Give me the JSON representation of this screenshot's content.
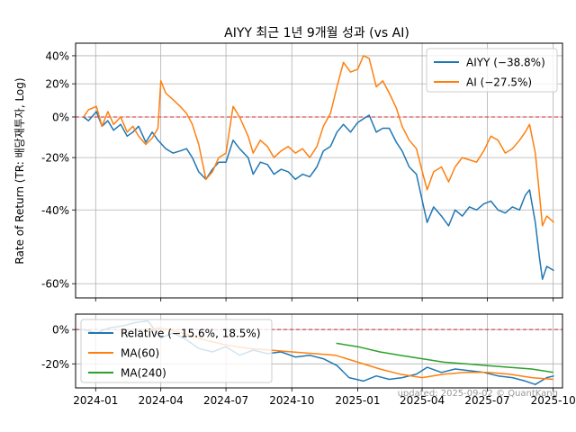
{
  "chart_data": [
    {
      "type": "line",
      "title": "AIYY 최근 1년 9개월 성과 (vs AI)",
      "ylabel": "Rate of Return (TR: 배당재투자, Log)",
      "yscale": "log",
      "ylim": [
        -0.63,
        0.5
      ],
      "xlim": [
        "2023-12-04",
        "2025-10-14"
      ],
      "grid": true,
      "legend_position": "top-right",
      "x_ticks": [
        {
          "date": "2024-01-01",
          "label": "2024-01"
        },
        {
          "date": "2024-04-01",
          "label": "2024-04"
        },
        {
          "date": "2024-07-01",
          "label": "2024-07"
        },
        {
          "date": "2024-10-01",
          "label": "2024-10"
        },
        {
          "date": "2025-01-01",
          "label": "2025-01"
        },
        {
          "date": "2025-04-01",
          "label": "2025-04"
        },
        {
          "date": "2025-07-01",
          "label": "2025-07"
        },
        {
          "date": "2025-10-01",
          "label": "2025-10"
        }
      ],
      "y_ticks": [
        {
          "value": 0.4,
          "label": "40%"
        },
        {
          "value": 0.2,
          "label": "20%"
        },
        {
          "value": 0.0,
          "label": "0%"
        },
        {
          "value": -0.2,
          "label": "-20%"
        },
        {
          "value": -0.4,
          "label": "-40%"
        },
        {
          "value": -0.6,
          "label": "-60%"
        }
      ],
      "reference_line": {
        "value": 0,
        "color": "#d62728",
        "style": "dashed"
      },
      "series": [
        {
          "name": "AIYY (−38.8%)",
          "color": "#1f77b4",
          "points": [
            [
              "2023-12-15",
              0.0
            ],
            [
              "2023-12-22",
              -0.02
            ],
            [
              "2024-01-02",
              0.03
            ],
            [
              "2024-01-10",
              -0.05
            ],
            [
              "2024-01-18",
              -0.02
            ],
            [
              "2024-01-26",
              -0.07
            ],
            [
              "2024-02-05",
              -0.04
            ],
            [
              "2024-02-14",
              -0.1
            ],
            [
              "2024-02-22",
              -0.08
            ],
            [
              "2024-03-01",
              -0.05
            ],
            [
              "2024-03-11",
              -0.13
            ],
            [
              "2024-03-20",
              -0.08
            ],
            [
              "2024-03-28",
              -0.12
            ],
            [
              "2024-04-08",
              -0.16
            ],
            [
              "2024-04-18",
              -0.18
            ],
            [
              "2024-04-28",
              -0.17
            ],
            [
              "2024-05-07",
              -0.16
            ],
            [
              "2024-05-15",
              -0.2
            ],
            [
              "2024-05-24",
              -0.26
            ],
            [
              "2024-06-03",
              -0.29
            ],
            [
              "2024-06-12",
              -0.25
            ],
            [
              "2024-06-21",
              -0.22
            ],
            [
              "2024-07-01",
              -0.22
            ],
            [
              "2024-07-11",
              -0.12
            ],
            [
              "2024-07-20",
              -0.16
            ],
            [
              "2024-08-01",
              -0.2
            ],
            [
              "2024-08-08",
              -0.27
            ],
            [
              "2024-08-18",
              -0.22
            ],
            [
              "2024-08-28",
              -0.23
            ],
            [
              "2024-09-06",
              -0.27
            ],
            [
              "2024-09-16",
              -0.25
            ],
            [
              "2024-09-26",
              -0.26
            ],
            [
              "2024-10-06",
              -0.29
            ],
            [
              "2024-10-16",
              -0.27
            ],
            [
              "2024-10-26",
              -0.28
            ],
            [
              "2024-11-05",
              -0.24
            ],
            [
              "2024-11-14",
              -0.17
            ],
            [
              "2024-11-24",
              -0.15
            ],
            [
              "2024-12-03",
              -0.08
            ],
            [
              "2024-12-12",
              -0.04
            ],
            [
              "2024-12-22",
              -0.08
            ],
            [
              "2025-01-01",
              -0.03
            ],
            [
              "2025-01-09",
              -0.01
            ],
            [
              "2025-01-17",
              0.01
            ],
            [
              "2025-01-27",
              -0.08
            ],
            [
              "2025-02-05",
              -0.06
            ],
            [
              "2025-02-14",
              -0.06
            ],
            [
              "2025-02-24",
              -0.13
            ],
            [
              "2025-03-04",
              -0.17
            ],
            [
              "2025-03-14",
              -0.24
            ],
            [
              "2025-03-24",
              -0.27
            ],
            [
              "2025-04-03",
              -0.39
            ],
            [
              "2025-04-08",
              -0.44
            ],
            [
              "2025-04-17",
              -0.39
            ],
            [
              "2025-04-28",
              -0.42
            ],
            [
              "2025-05-08",
              -0.45
            ],
            [
              "2025-05-17",
              -0.4
            ],
            [
              "2025-05-27",
              -0.42
            ],
            [
              "2025-06-06",
              -0.39
            ],
            [
              "2025-06-16",
              -0.4
            ],
            [
              "2025-06-26",
              -0.38
            ],
            [
              "2025-07-06",
              -0.37
            ],
            [
              "2025-07-16",
              -0.4
            ],
            [
              "2025-07-26",
              -0.41
            ],
            [
              "2025-08-05",
              -0.39
            ],
            [
              "2025-08-15",
              -0.4
            ],
            [
              "2025-08-23",
              -0.35
            ],
            [
              "2025-08-29",
              -0.33
            ],
            [
              "2025-09-06",
              -0.44
            ],
            [
              "2025-09-12",
              -0.54
            ],
            [
              "2025-09-16",
              -0.59
            ],
            [
              "2025-09-22",
              -0.56
            ],
            [
              "2025-10-02",
              -0.57
            ]
          ]
        },
        {
          "name": "AI (−27.5%)",
          "color": "#ff7f0e",
          "points": [
            [
              "2023-12-15",
              0.0
            ],
            [
              "2023-12-22",
              0.04
            ],
            [
              "2024-01-02",
              0.06
            ],
            [
              "2024-01-10",
              -0.05
            ],
            [
              "2024-01-18",
              0.03
            ],
            [
              "2024-01-26",
              -0.04
            ],
            [
              "2024-02-05",
              0.0
            ],
            [
              "2024-02-14",
              -0.08
            ],
            [
              "2024-02-22",
              -0.05
            ],
            [
              "2024-03-01",
              -0.1
            ],
            [
              "2024-03-11",
              -0.14
            ],
            [
              "2024-03-20",
              -0.11
            ],
            [
              "2024-03-28",
              -0.06
            ],
            [
              "2024-04-01",
              0.22
            ],
            [
              "2024-04-08",
              0.14
            ],
            [
              "2024-04-18",
              0.1
            ],
            [
              "2024-04-28",
              0.06
            ],
            [
              "2024-05-07",
              0.02
            ],
            [
              "2024-05-15",
              -0.04
            ],
            [
              "2024-05-24",
              -0.14
            ],
            [
              "2024-06-03",
              -0.29
            ],
            [
              "2024-06-12",
              -0.26
            ],
            [
              "2024-06-21",
              -0.2
            ],
            [
              "2024-07-01",
              -0.18
            ],
            [
              "2024-07-11",
              0.06
            ],
            [
              "2024-07-20",
              0.0
            ],
            [
              "2024-08-01",
              -0.1
            ],
            [
              "2024-08-08",
              -0.18
            ],
            [
              "2024-08-18",
              -0.12
            ],
            [
              "2024-08-28",
              -0.15
            ],
            [
              "2024-09-06",
              -0.2
            ],
            [
              "2024-09-16",
              -0.17
            ],
            [
              "2024-09-26",
              -0.15
            ],
            [
              "2024-10-06",
              -0.18
            ],
            [
              "2024-10-16",
              -0.16
            ],
            [
              "2024-10-26",
              -0.2
            ],
            [
              "2024-11-05",
              -0.15
            ],
            [
              "2024-11-14",
              -0.05
            ],
            [
              "2024-11-24",
              0.02
            ],
            [
              "2024-12-03",
              0.18
            ],
            [
              "2024-12-12",
              0.35
            ],
            [
              "2024-12-22",
              0.28
            ],
            [
              "2025-01-01",
              0.3
            ],
            [
              "2025-01-09",
              0.4
            ],
            [
              "2025-01-17",
              0.38
            ],
            [
              "2025-01-27",
              0.18
            ],
            [
              "2025-02-05",
              0.22
            ],
            [
              "2025-02-14",
              0.14
            ],
            [
              "2025-02-24",
              0.05
            ],
            [
              "2025-03-04",
              -0.05
            ],
            [
              "2025-03-14",
              -0.12
            ],
            [
              "2025-03-24",
              -0.16
            ],
            [
              "2025-04-03",
              -0.28
            ],
            [
              "2025-04-08",
              -0.33
            ],
            [
              "2025-04-17",
              -0.26
            ],
            [
              "2025-04-28",
              -0.24
            ],
            [
              "2025-05-08",
              -0.3
            ],
            [
              "2025-05-17",
              -0.24
            ],
            [
              "2025-05-27",
              -0.2
            ],
            [
              "2025-06-06",
              -0.21
            ],
            [
              "2025-06-16",
              -0.22
            ],
            [
              "2025-06-26",
              -0.17
            ],
            [
              "2025-07-06",
              -0.1
            ],
            [
              "2025-07-16",
              -0.12
            ],
            [
              "2025-07-26",
              -0.18
            ],
            [
              "2025-08-05",
              -0.16
            ],
            [
              "2025-08-15",
              -0.12
            ],
            [
              "2025-08-23",
              -0.08
            ],
            [
              "2025-08-29",
              -0.04
            ],
            [
              "2025-09-06",
              -0.18
            ],
            [
              "2025-09-12",
              -0.35
            ],
            [
              "2025-09-16",
              -0.45
            ],
            [
              "2025-09-22",
              -0.42
            ],
            [
              "2025-10-02",
              -0.44
            ]
          ]
        }
      ]
    },
    {
      "type": "line",
      "ylim": [
        -0.34,
        0.09
      ],
      "xlim": [
        "2023-12-04",
        "2025-10-14"
      ],
      "grid": true,
      "legend_position": "top-left",
      "x_ticks": [
        {
          "date": "2024-01-01",
          "label": "2024-01"
        },
        {
          "date": "2024-04-01",
          "label": "2024-04"
        },
        {
          "date": "2024-07-01",
          "label": "2024-07"
        },
        {
          "date": "2024-10-01",
          "label": "2024-10"
        },
        {
          "date": "2025-01-01",
          "label": "2025-01"
        },
        {
          "date": "2025-04-01",
          "label": "2025-04"
        },
        {
          "date": "2025-07-01",
          "label": "2025-07"
        },
        {
          "date": "2025-10-01",
          "label": "2025-10"
        }
      ],
      "y_ticks": [
        {
          "value": 0.0,
          "label": "0%"
        },
        {
          "value": -0.2,
          "label": "-20%"
        }
      ],
      "reference_line": {
        "value": 0,
        "color": "#d62728",
        "style": "dashed"
      },
      "series": [
        {
          "name": "Relative (−15.6%, 18.5%)",
          "color": "#1f77b4",
          "points": [
            [
              "2023-12-15",
              0.0
            ],
            [
              "2024-01-02",
              -0.02
            ],
            [
              "2024-01-20",
              0.01
            ],
            [
              "2024-02-07",
              0.02
            ],
            [
              "2024-02-25",
              0.04
            ],
            [
              "2024-03-14",
              0.05
            ],
            [
              "2024-04-01",
              -0.05
            ],
            [
              "2024-04-18",
              -0.02
            ],
            [
              "2024-05-07",
              -0.06
            ],
            [
              "2024-05-24",
              -0.11
            ],
            [
              "2024-06-12",
              -0.13
            ],
            [
              "2024-07-01",
              -0.1
            ],
            [
              "2024-07-20",
              -0.15
            ],
            [
              "2024-08-08",
              -0.12
            ],
            [
              "2024-08-28",
              -0.14
            ],
            [
              "2024-09-16",
              -0.13
            ],
            [
              "2024-10-06",
              -0.16
            ],
            [
              "2024-10-26",
              -0.15
            ],
            [
              "2024-11-14",
              -0.17
            ],
            [
              "2024-12-03",
              -0.21
            ],
            [
              "2024-12-20",
              -0.28
            ],
            [
              "2025-01-09",
              -0.3
            ],
            [
              "2025-01-27",
              -0.27
            ],
            [
              "2025-02-14",
              -0.29
            ],
            [
              "2025-03-04",
              -0.28
            ],
            [
              "2025-03-24",
              -0.26
            ],
            [
              "2025-04-08",
              -0.22
            ],
            [
              "2025-04-28",
              -0.25
            ],
            [
              "2025-05-17",
              -0.23
            ],
            [
              "2025-06-06",
              -0.24
            ],
            [
              "2025-06-26",
              -0.25
            ],
            [
              "2025-07-16",
              -0.27
            ],
            [
              "2025-08-05",
              -0.28
            ],
            [
              "2025-08-23",
              -0.3
            ],
            [
              "2025-09-06",
              -0.32
            ],
            [
              "2025-09-22",
              -0.28
            ],
            [
              "2025-10-02",
              -0.27
            ]
          ]
        },
        {
          "name": "MA(60)",
          "color": "#ff7f0e",
          "points": [
            [
              "2024-03-08",
              0.0
            ],
            [
              "2024-04-01",
              0.01
            ],
            [
              "2024-05-01",
              -0.02
            ],
            [
              "2024-06-01",
              -0.06
            ],
            [
              "2024-07-01",
              -0.09
            ],
            [
              "2024-08-01",
              -0.11
            ],
            [
              "2024-09-01",
              -0.12
            ],
            [
              "2024-10-01",
              -0.13
            ],
            [
              "2024-11-01",
              -0.14
            ],
            [
              "2024-12-01",
              -0.15
            ],
            [
              "2025-01-01",
              -0.19
            ],
            [
              "2025-02-01",
              -0.23
            ],
            [
              "2025-03-01",
              -0.26
            ],
            [
              "2025-04-01",
              -0.28
            ],
            [
              "2025-05-01",
              -0.26
            ],
            [
              "2025-06-01",
              -0.25
            ],
            [
              "2025-07-01",
              -0.25
            ],
            [
              "2025-08-01",
              -0.26
            ],
            [
              "2025-09-01",
              -0.28
            ],
            [
              "2025-10-01",
              -0.29
            ]
          ]
        },
        {
          "name": "MA(240)",
          "color": "#2ca02c",
          "points": [
            [
              "2024-12-02",
              -0.08
            ],
            [
              "2025-01-01",
              -0.1
            ],
            [
              "2025-02-01",
              -0.13
            ],
            [
              "2025-03-01",
              -0.15
            ],
            [
              "2025-04-01",
              -0.17
            ],
            [
              "2025-05-01",
              -0.19
            ],
            [
              "2025-06-01",
              -0.2
            ],
            [
              "2025-07-01",
              -0.21
            ],
            [
              "2025-08-01",
              -0.22
            ],
            [
              "2025-09-01",
              -0.23
            ],
            [
              "2025-10-01",
              -0.25
            ]
          ]
        }
      ]
    }
  ],
  "footer_note": "updated: 2025-09-02 © QuantKang"
}
